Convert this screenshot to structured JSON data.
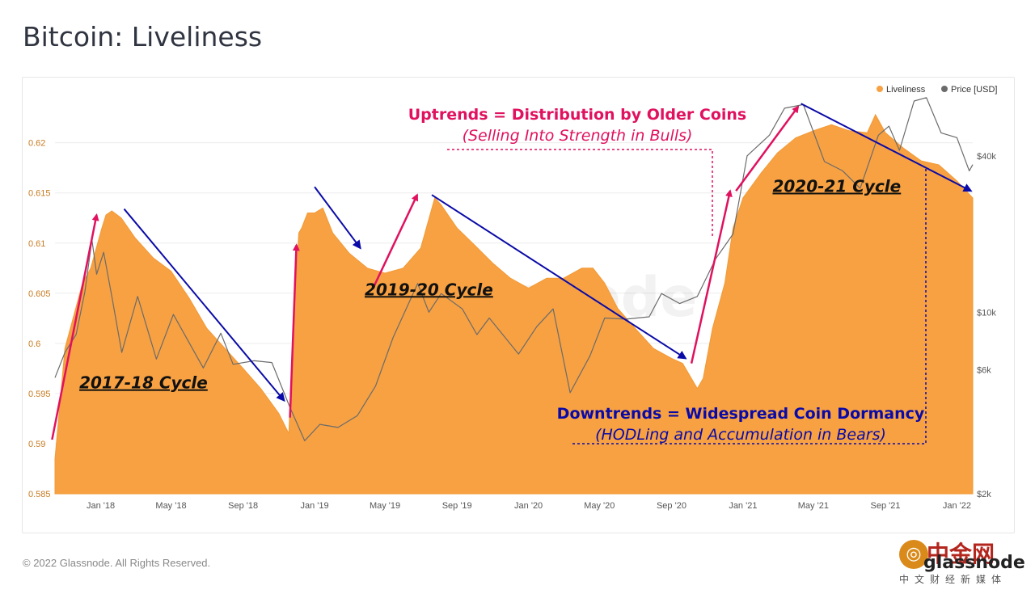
{
  "page": {
    "title": "Bitcoin: Liveliness",
    "copyright": "© 2022 Glassnode. All Rights Reserved.",
    "logo": {
      "brand": "中金网",
      "wordmark": "glassnode",
      "subtitle": "中文财经新媒体"
    }
  },
  "colors": {
    "liveliness": "#f7a142",
    "price": "#6b6b6b",
    "pink": "#e0115f",
    "blue": "#0a0aa8",
    "axis_left": "#c87b22",
    "axis_text": "#555555"
  },
  "chart_data": {
    "type": "area",
    "title": "Bitcoin: Liveliness",
    "watermark": "glassnode",
    "legend": {
      "position": "top-right",
      "items": [
        "Liveliness",
        "Price [USD]"
      ]
    },
    "x_ticks": [
      "Jan '18",
      "May '18",
      "Sep '18",
      "Jan '19",
      "May '19",
      "Sep '19",
      "Jan '20",
      "May '20",
      "Sep '20",
      "Jan '21",
      "May '21",
      "Sep '21",
      "Jan '22"
    ],
    "y_left": {
      "label": "",
      "range": [
        0.585,
        0.6265
      ],
      "ticks": [
        "0.585",
        "0.59",
        "0.595",
        "0.6",
        "0.605",
        "0.61",
        "0.615",
        "0.62"
      ]
    },
    "y_right": {
      "label": "",
      "scale": "log",
      "range": [
        2000,
        80000
      ],
      "ticks": [
        "$2k",
        "$6k",
        "$10k",
        "$40k"
      ]
    },
    "series": [
      {
        "name": "Liveliness",
        "points": [
          [
            "2017-10-15",
            0.5885
          ],
          [
            "2017-11-01",
            0.5995
          ],
          [
            "2017-12-01",
            0.606
          ],
          [
            "2017-12-15",
            0.6075
          ],
          [
            "2018-01-03",
            0.6115
          ],
          [
            "2018-01-10",
            0.6128
          ],
          [
            "2018-01-20",
            0.6132
          ],
          [
            "2018-02-05",
            0.6125
          ],
          [
            "2018-03-01",
            0.6105
          ],
          [
            "2018-04-01",
            0.6085
          ],
          [
            "2018-05-01",
            0.6072
          ],
          [
            "2018-06-01",
            0.6045
          ],
          [
            "2018-07-01",
            0.6015
          ],
          [
            "2018-08-01",
            0.5995
          ],
          [
            "2018-09-01",
            0.5975
          ],
          [
            "2018-10-01",
            0.5955
          ],
          [
            "2018-11-01",
            0.593
          ],
          [
            "2018-11-18",
            0.591
          ],
          [
            "2018-11-25",
            0.601
          ],
          [
            "2018-12-05",
            0.611
          ],
          [
            "2018-12-10",
            0.6115
          ],
          [
            "2018-12-20",
            0.613
          ],
          [
            "2019-01-01",
            0.613
          ],
          [
            "2019-01-15",
            0.6135
          ],
          [
            "2019-02-01",
            0.611
          ],
          [
            "2019-03-01",
            0.609
          ],
          [
            "2019-04-01",
            0.6075
          ],
          [
            "2019-05-01",
            0.607
          ],
          [
            "2019-06-01",
            0.6075
          ],
          [
            "2019-07-01",
            0.6095
          ],
          [
            "2019-07-25",
            0.6145
          ],
          [
            "2019-08-05",
            0.6138
          ],
          [
            "2019-09-01",
            0.6115
          ],
          [
            "2019-10-01",
            0.6098
          ],
          [
            "2019-11-01",
            0.608
          ],
          [
            "2019-12-01",
            0.6065
          ],
          [
            "2020-01-01",
            0.6055
          ],
          [
            "2020-02-01",
            0.6065
          ],
          [
            "2020-03-01",
            0.6065
          ],
          [
            "2020-04-01",
            0.6075
          ],
          [
            "2020-04-20",
            0.6075
          ],
          [
            "2020-05-10",
            0.606
          ],
          [
            "2020-06-01",
            0.6035
          ],
          [
            "2020-07-01",
            0.6015
          ],
          [
            "2020-08-01",
            0.5995
          ],
          [
            "2020-09-01",
            0.5985
          ],
          [
            "2020-09-20",
            0.598
          ],
          [
            "2020-10-15",
            0.5955
          ],
          [
            "2020-10-25",
            0.5965
          ],
          [
            "2020-11-10",
            0.6015
          ],
          [
            "2020-12-01",
            0.606
          ],
          [
            "2020-12-15",
            0.6115
          ],
          [
            "2021-01-01",
            0.6145
          ],
          [
            "2021-02-01",
            0.617
          ],
          [
            "2021-03-01",
            0.619
          ],
          [
            "2021-04-01",
            0.6205
          ],
          [
            "2021-05-01",
            0.6212
          ],
          [
            "2021-06-01",
            0.6218
          ],
          [
            "2021-07-01",
            0.6212
          ],
          [
            "2021-08-01",
            0.621
          ],
          [
            "2021-08-15",
            0.6228
          ],
          [
            "2021-09-01",
            0.621
          ],
          [
            "2021-10-01",
            0.6195
          ],
          [
            "2021-11-01",
            0.6182
          ],
          [
            "2021-12-01",
            0.6178
          ],
          [
            "2022-01-01",
            0.6162
          ],
          [
            "2022-01-28",
            0.6145
          ]
        ]
      },
      {
        "name": "Price [USD]",
        "points": [
          [
            "2017-10-15",
            5600
          ],
          [
            "2017-11-01",
            7000
          ],
          [
            "2017-11-20",
            8200
          ],
          [
            "2017-12-05",
            12000
          ],
          [
            "2017-12-17",
            19000
          ],
          [
            "2017-12-25",
            14000
          ],
          [
            "2018-01-06",
            17000
          ],
          [
            "2018-01-20",
            11500
          ],
          [
            "2018-02-06",
            7000
          ],
          [
            "2018-03-05",
            11500
          ],
          [
            "2018-04-06",
            6600
          ],
          [
            "2018-05-05",
            9800
          ],
          [
            "2018-06-25",
            6100
          ],
          [
            "2018-07-25",
            8300
          ],
          [
            "2018-08-15",
            6300
          ],
          [
            "2018-09-20",
            6500
          ],
          [
            "2018-10-20",
            6400
          ],
          [
            "2018-11-20",
            4300
          ],
          [
            "2018-12-15",
            3200
          ],
          [
            "2019-01-10",
            3700
          ],
          [
            "2019-02-10",
            3600
          ],
          [
            "2019-03-15",
            4000
          ],
          [
            "2019-04-15",
            5200
          ],
          [
            "2019-05-15",
            8000
          ],
          [
            "2019-06-26",
            12900
          ],
          [
            "2019-07-15",
            10000
          ],
          [
            "2019-08-05",
            11800
          ],
          [
            "2019-09-10",
            10300
          ],
          [
            "2019-10-05",
            8200
          ],
          [
            "2019-10-26",
            9500
          ],
          [
            "2019-12-15",
            6900
          ],
          [
            "2020-01-15",
            8800
          ],
          [
            "2020-02-12",
            10300
          ],
          [
            "2020-03-12",
            4900
          ],
          [
            "2020-04-15",
            6800
          ],
          [
            "2020-05-10",
            9500
          ],
          [
            "2020-06-15",
            9400
          ],
          [
            "2020-07-25",
            9600
          ],
          [
            "2020-08-15",
            11800
          ],
          [
            "2020-09-15",
            10800
          ],
          [
            "2020-10-15",
            11500
          ],
          [
            "2020-11-15",
            16000
          ],
          [
            "2020-12-15",
            20000
          ],
          [
            "2021-01-08",
            40000
          ],
          [
            "2021-02-15",
            48000
          ],
          [
            "2021-03-13",
            61000
          ],
          [
            "2021-04-14",
            63000
          ],
          [
            "2021-05-20",
            38000
          ],
          [
            "2021-06-20",
            35000
          ],
          [
            "2021-07-20",
            30000
          ],
          [
            "2021-08-20",
            48000
          ],
          [
            "2021-09-07",
            52000
          ],
          [
            "2021-09-25",
            42000
          ],
          [
            "2021-10-20",
            65000
          ],
          [
            "2021-11-10",
            67000
          ],
          [
            "2021-12-05",
            49000
          ],
          [
            "2022-01-01",
            47000
          ],
          [
            "2022-01-22",
            35000
          ],
          [
            "2022-01-28",
            37000
          ]
        ]
      }
    ],
    "annotations": {
      "cycles": [
        {
          "label": "2017-18 Cycle",
          "date": "2018-03-15",
          "value": 0.5955
        },
        {
          "label": "2019-20 Cycle",
          "date": "2019-07-15",
          "value": 0.6048
        },
        {
          "label": "2020-21 Cycle",
          "date": "2021-06-10",
          "value": 0.6151
        }
      ],
      "uptrend_title": "Uptrends = Distribution by Older Coins",
      "uptrend_subtitle": "(Selling Into Strength in Bulls)",
      "downtrend_title": "Downtrends = Widespread Coin Dormancy",
      "downtrend_subtitle": "(HODLing and Accumulation in Bears)",
      "uptrend_arrows": [
        {
          "from": [
            "2017-10-10",
            0.5904
          ],
          "to": [
            "2017-12-25",
            0.6128
          ]
        },
        {
          "from": [
            "2018-11-20",
            0.5926
          ],
          "to": [
            "2018-12-01",
            0.6098
          ]
        },
        {
          "from": [
            "2019-04-10",
            0.6054
          ],
          "to": [
            "2019-06-25",
            0.6148
          ]
        },
        {
          "from": [
            "2020-10-05",
            0.598
          ],
          "to": [
            "2020-12-10",
            0.6152
          ]
        },
        {
          "from": [
            "2020-12-20",
            0.6152
          ],
          "to": [
            "2021-04-05",
            0.6236
          ]
        }
      ],
      "downtrend_arrows": [
        {
          "from": [
            "2018-02-10",
            0.6134
          ],
          "to": [
            "2018-11-10",
            0.5943
          ]
        },
        {
          "from": [
            "2019-01-01",
            0.6156
          ],
          "to": [
            "2019-03-20",
            0.6095
          ]
        },
        {
          "from": [
            "2019-07-20",
            0.6148
          ],
          "to": [
            "2020-09-25",
            0.5985
          ]
        },
        {
          "from": [
            "2021-04-10",
            0.6239
          ],
          "to": [
            "2022-01-25",
            0.6152
          ]
        }
      ]
    }
  }
}
